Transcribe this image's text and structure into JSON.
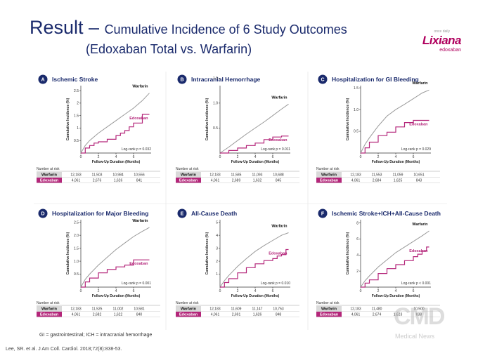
{
  "slide": {
    "title_prefix": "Result – ",
    "title_rest": "Cumulative Incidence of 6 Study Outcomes",
    "title_line2": "(Edoxaban Total vs. Warfarin)",
    "footnote": "GI = gastrointestinal; ICH = intracranial hemorrhage",
    "citation": "Lee, SR. et al. J Am Coll. Cardiol. 2018;72(8):838-53."
  },
  "logo": {
    "tiny_text": "once daily",
    "brand": "Lixiana",
    "generic": "edoxaban"
  },
  "watermark": {
    "mark": "CMD",
    "sub": "Medical News"
  },
  "colors": {
    "warfarin": "#9a9a9a",
    "edoxaban": "#b4267a",
    "badge": "#1a2a6c",
    "title": "#1a2a6c"
  },
  "common": {
    "xlabel": "Follow-Up Duration (Months)",
    "ylabel": "Cumulative Incidence (%)",
    "risk_header": "Number at risk",
    "series_names": [
      "Warfarin",
      "Edoxaban"
    ]
  },
  "chart_data": [
    {
      "type": "line",
      "letter": "A",
      "title": "Ischemic Stroke",
      "ylim": [
        0,
        2.7
      ],
      "yticks": [
        0.5,
        1,
        1.5,
        2,
        2.5
      ],
      "yticklabels": [
        "0.5",
        "1",
        "1.5",
        "2",
        "2.5"
      ],
      "xlim": [
        0,
        8
      ],
      "xticks": [
        0,
        2,
        4,
        6
      ],
      "xticklabels": [
        "0",
        "2",
        "4",
        "6"
      ],
      "logrank": "Log-rank p = 0.032",
      "series": [
        {
          "name": "Warfarin",
          "step": false,
          "x": [
            0,
            0.5,
            1,
            2,
            3,
            4,
            5,
            6,
            7,
            7.8
          ],
          "y": [
            0,
            0.3,
            0.5,
            0.8,
            1.05,
            1.3,
            1.55,
            1.8,
            2.1,
            2.4
          ]
        },
        {
          "name": "Edoxaban",
          "step": true,
          "x": [
            0,
            0.5,
            1,
            1.5,
            2,
            3,
            4,
            4.5,
            5,
            5.5,
            6,
            7,
            7.8
          ],
          "y": [
            0,
            0.2,
            0.3,
            0.4,
            0.45,
            0.55,
            0.7,
            0.8,
            0.9,
            1.05,
            1.2,
            1.55,
            1.55
          ]
        }
      ],
      "risk": {
        "warfarin": [
          "12,183",
          "11,503",
          "10,984",
          "10,556"
        ],
        "edoxaban": [
          "4,061",
          "2,676",
          "1,626",
          "841"
        ]
      }
    },
    {
      "type": "line",
      "letter": "B",
      "title": "Intracranial Hemorrhage",
      "ylim": [
        0,
        1.35
      ],
      "yticks": [
        0.5,
        1,
        1.5
      ],
      "yticklabels": [
        "0.5",
        "1.0",
        "1.5"
      ],
      "xlim": [
        0,
        8
      ],
      "xticks": [
        0,
        2,
        4,
        6
      ],
      "xticklabels": [
        "0",
        "2",
        "4",
        "6"
      ],
      "logrank": "Log-rank p = 0.011",
      "series": [
        {
          "name": "Warfarin",
          "step": false,
          "x": [
            0,
            1,
            2,
            3,
            4,
            5,
            6,
            7,
            7.8
          ],
          "y": [
            0,
            0.12,
            0.25,
            0.38,
            0.5,
            0.62,
            0.75,
            0.88,
            0.98
          ]
        },
        {
          "name": "Edoxaban",
          "step": true,
          "x": [
            0,
            1,
            2,
            3,
            4,
            5,
            6,
            7,
            7.8
          ],
          "y": [
            0,
            0.05,
            0.1,
            0.15,
            0.2,
            0.27,
            0.32,
            0.34,
            0.34
          ]
        }
      ],
      "risk": {
        "warfarin": [
          "12,183",
          "11,585",
          "11,093",
          "10,688"
        ],
        "edoxaban": [
          "4,061",
          "2,689",
          "1,632",
          "845"
        ]
      }
    },
    {
      "type": "line",
      "letter": "C",
      "title": "Hospitalization for GI Bleeding",
      "ylim": [
        0,
        1.55
      ],
      "yticks": [
        0.5,
        1,
        1.5
      ],
      "yticklabels": [
        "0.5",
        "1.0",
        "1.5"
      ],
      "xlim": [
        0,
        8
      ],
      "xticks": [
        0,
        2,
        4,
        6
      ],
      "xticklabels": [
        "0",
        "2",
        "4",
        "6"
      ],
      "logrank": "Log-rank p = 0.029",
      "series": [
        {
          "name": "Warfarin",
          "step": false,
          "x": [
            0,
            0.5,
            1,
            2,
            3,
            4,
            5,
            6,
            7,
            7.8
          ],
          "y": [
            0,
            0.2,
            0.35,
            0.62,
            0.85,
            1.0,
            1.12,
            1.25,
            1.38,
            1.45
          ]
        },
        {
          "name": "Edoxaban",
          "step": true,
          "x": [
            0,
            0.5,
            1,
            2,
            3,
            4,
            5,
            6,
            7,
            7.8
          ],
          "y": [
            0,
            0.12,
            0.25,
            0.4,
            0.48,
            0.6,
            0.7,
            0.75,
            0.75,
            0.75
          ]
        }
      ],
      "risk": {
        "warfarin": [
          "12,183",
          "11,553",
          "11,059",
          "10,651"
        ],
        "edoxaban": [
          "4,061",
          "2,684",
          "1,625",
          "843"
        ]
      }
    },
    {
      "type": "line",
      "letter": "D",
      "title": "Hospitalization for Major Bleeding",
      "ylim": [
        0,
        2.6
      ],
      "yticks": [
        0.5,
        1,
        1.5,
        2,
        2.5
      ],
      "yticklabels": [
        "0.5",
        "1.0",
        "1.5",
        "2.0",
        "2.5"
      ],
      "xlim": [
        0,
        8
      ],
      "xticks": [
        0,
        2,
        4,
        6
      ],
      "xticklabels": [
        "0",
        "2",
        "4",
        "6"
      ],
      "logrank": "Log-rank p = 0.001",
      "series": [
        {
          "name": "Warfarin",
          "step": false,
          "x": [
            0,
            0.5,
            1,
            2,
            3,
            4,
            5,
            6,
            7,
            7.8
          ],
          "y": [
            0,
            0.3,
            0.5,
            0.85,
            1.15,
            1.45,
            1.7,
            1.95,
            2.15,
            2.3
          ]
        },
        {
          "name": "Edoxaban",
          "step": true,
          "x": [
            0,
            0.5,
            1,
            2,
            3,
            4,
            5,
            6,
            7,
            7.8
          ],
          "y": [
            0,
            0.2,
            0.35,
            0.55,
            0.68,
            0.78,
            0.85,
            1.05,
            1.05,
            1.05
          ]
        }
      ],
      "risk": {
        "warfarin": [
          "12,183",
          "11,525",
          "11,002",
          "10,581"
        ],
        "edoxaban": [
          "4,061",
          "2,682",
          "1,622",
          "840"
        ]
      }
    },
    {
      "type": "line",
      "letter": "E",
      "title": "All-Cause Death",
      "ylim": [
        0,
        5.2
      ],
      "yticks": [
        1,
        2,
        3,
        4,
        5
      ],
      "yticklabels": [
        "1",
        "2",
        "3",
        "4",
        "5"
      ],
      "xlim": [
        0,
        8
      ],
      "xticks": [
        0,
        2,
        4,
        6
      ],
      "xticklabels": [
        "0",
        "2",
        "4",
        "6"
      ],
      "logrank": "Log-rank p = 0.010",
      "series": [
        {
          "name": "Warfarin",
          "step": false,
          "x": [
            0,
            0.5,
            1,
            2,
            3,
            4,
            5,
            6,
            7,
            7.8
          ],
          "y": [
            0,
            0.5,
            0.9,
            1.6,
            2.2,
            2.75,
            3.2,
            3.6,
            4.0,
            4.2
          ]
        },
        {
          "name": "Edoxaban",
          "step": true,
          "x": [
            0,
            0.5,
            1,
            2,
            3,
            4,
            5,
            6,
            6.5,
            7,
            7.5,
            7.8
          ],
          "y": [
            0,
            0.35,
            0.65,
            1.1,
            1.5,
            1.8,
            2.05,
            2.2,
            2.4,
            2.5,
            2.9,
            2.9
          ]
        }
      ],
      "risk": {
        "warfarin": [
          "12,183",
          "11,609",
          "11,147",
          "10,753"
        ],
        "edoxaban": [
          "4,061",
          "2,691",
          "1,626",
          "848"
        ]
      }
    },
    {
      "type": "line",
      "letter": "F",
      "title": "Ischemic Stroke+ICH+All-Cause Death",
      "ylim": [
        0,
        8.4
      ],
      "yticks": [
        2,
        4,
        6,
        8
      ],
      "yticklabels": [
        "2",
        "4",
        "6",
        "8"
      ],
      "xlim": [
        0,
        8
      ],
      "xticks": [
        0,
        2,
        4,
        6
      ],
      "xticklabels": [
        "0",
        "2",
        "4",
        "6"
      ],
      "logrank": "Log-rank p < 0.001",
      "series": [
        {
          "name": "Warfarin",
          "step": false,
          "x": [
            0,
            0.5,
            1,
            2,
            3,
            4,
            5,
            6,
            7,
            7.8
          ],
          "y": [
            0,
            0.8,
            1.4,
            2.5,
            3.4,
            4.3,
            5.0,
            5.7,
            6.4,
            7.0
          ]
        },
        {
          "name": "Edoxaban",
          "step": true,
          "x": [
            0,
            0.5,
            1,
            2,
            3,
            4,
            5,
            6,
            6.5,
            7,
            7.5,
            7.8
          ],
          "y": [
            0,
            0.5,
            0.9,
            1.7,
            2.3,
            2.8,
            3.3,
            3.8,
            4.1,
            4.5,
            5.0,
            5.0
          ]
        }
      ],
      "risk": {
        "warfarin": [
          "12,183",
          "11,480",
          "",
          "10,500"
        ],
        "edoxaban": [
          "4,061",
          "2,674",
          "1,623",
          "838"
        ]
      }
    }
  ]
}
